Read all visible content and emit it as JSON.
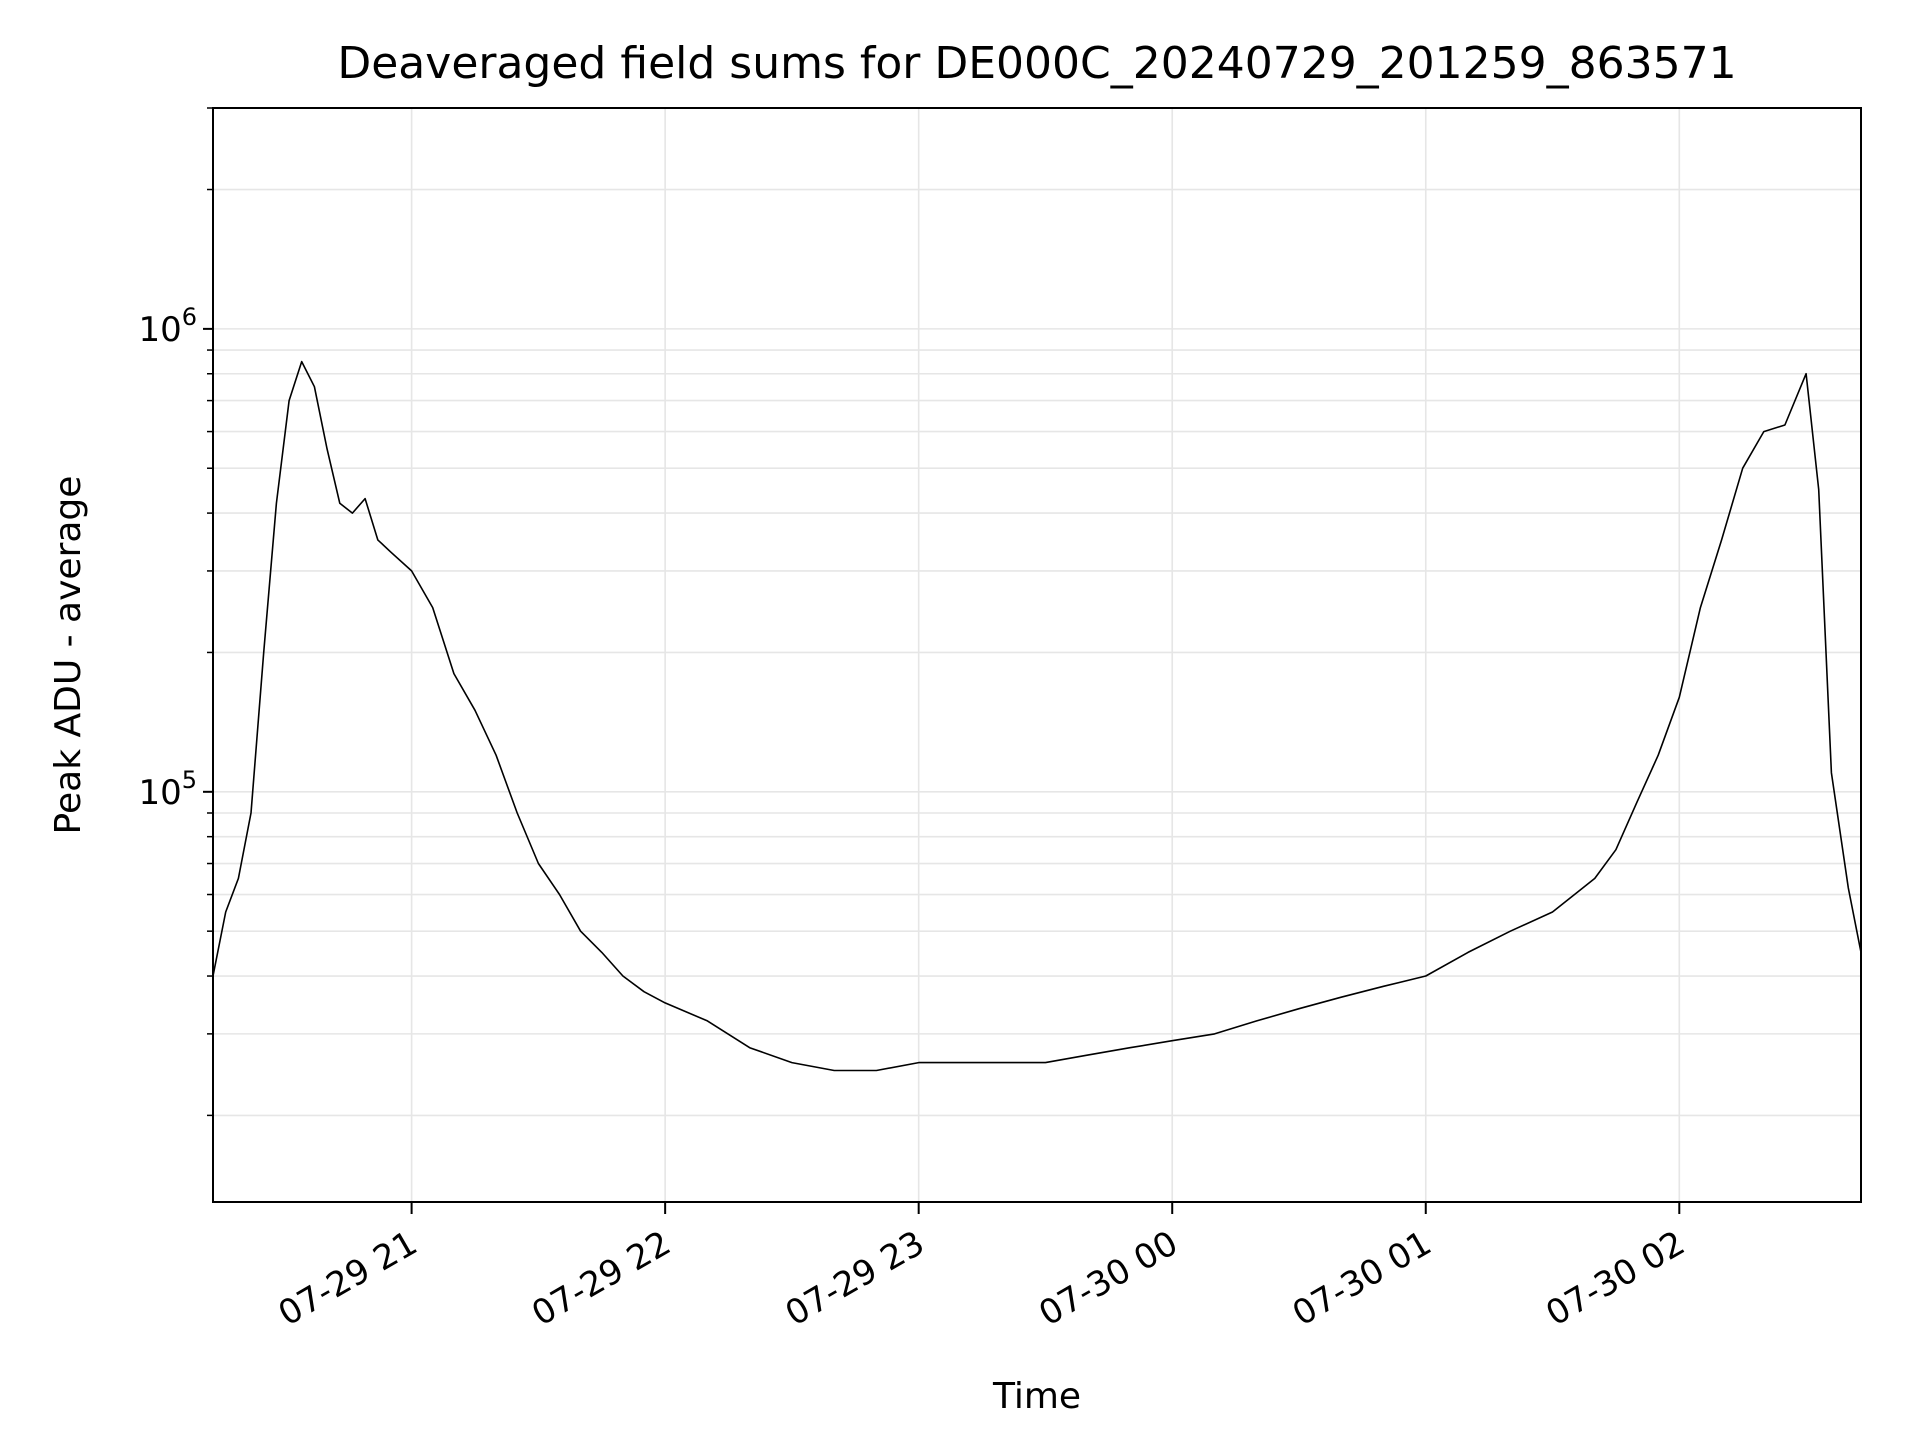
{
  "chart_data": {
    "type": "line",
    "title": "Deaveraged field sums for DE000C_20240729_201259_863571",
    "xlabel": "Time",
    "ylabel": "Peak ADU - average",
    "yscale": "log",
    "xlim": [
      "2024-07-29 20:13",
      "2024-07-30 02:43"
    ],
    "ylim": [
      13000,
      3000000
    ],
    "grid": true,
    "line_color": "#000000",
    "grid_color": "#e6e6e6",
    "xticks": [
      "2024-07-29 21:00",
      "2024-07-29 22:00",
      "2024-07-29 23:00",
      "2024-07-30 00:00",
      "2024-07-30 01:00",
      "2024-07-30 02:00"
    ],
    "xtick_labels": [
      "07-29 21",
      "07-29 22",
      "07-29 23",
      "07-30 00",
      "07-30 01",
      "07-30 02"
    ],
    "ytick_labels": [
      {
        "value": 100000,
        "base": "10",
        "exp": "5"
      },
      {
        "value": 1000000,
        "base": "10",
        "exp": "6"
      }
    ],
    "series": [
      {
        "x": [
          "2024-07-29 20:13",
          "2024-07-29 20:16",
          "2024-07-29 20:19",
          "2024-07-29 20:22",
          "2024-07-29 20:25",
          "2024-07-29 20:28",
          "2024-07-29 20:31",
          "2024-07-29 20:34",
          "2024-07-29 20:37",
          "2024-07-29 20:40",
          "2024-07-29 20:43",
          "2024-07-29 20:46",
          "2024-07-29 20:49",
          "2024-07-29 20:52",
          "2024-07-29 20:55",
          "2024-07-29 21:00",
          "2024-07-29 21:05",
          "2024-07-29 21:10",
          "2024-07-29 21:15",
          "2024-07-29 21:20",
          "2024-07-29 21:25",
          "2024-07-29 21:30",
          "2024-07-29 21:35",
          "2024-07-29 21:40",
          "2024-07-29 21:45",
          "2024-07-29 21:50",
          "2024-07-29 21:55",
          "2024-07-29 22:00",
          "2024-07-29 22:10",
          "2024-07-29 22:20",
          "2024-07-29 22:30",
          "2024-07-29 22:40",
          "2024-07-29 22:50",
          "2024-07-29 23:00",
          "2024-07-29 23:10",
          "2024-07-29 23:20",
          "2024-07-29 23:30",
          "2024-07-29 23:40",
          "2024-07-29 23:50",
          "2024-07-30 00:00",
          "2024-07-30 00:10",
          "2024-07-30 00:20",
          "2024-07-30 00:30",
          "2024-07-30 00:40",
          "2024-07-30 00:50",
          "2024-07-30 01:00",
          "2024-07-30 01:10",
          "2024-07-30 01:20",
          "2024-07-30 01:30",
          "2024-07-30 01:40",
          "2024-07-30 01:45",
          "2024-07-30 01:50",
          "2024-07-30 01:55",
          "2024-07-30 02:00",
          "2024-07-30 02:05",
          "2024-07-30 02:10",
          "2024-07-30 02:15",
          "2024-07-30 02:20",
          "2024-07-30 02:25",
          "2024-07-30 02:30",
          "2024-07-30 02:33",
          "2024-07-30 02:36",
          "2024-07-30 02:40",
          "2024-07-30 02:43"
        ],
        "y": [
          40000,
          55000,
          65000,
          90000,
          200000,
          420000,
          700000,
          850000,
          750000,
          550000,
          420000,
          400000,
          430000,
          350000,
          330000,
          300000,
          250000,
          180000,
          150000,
          120000,
          90000,
          70000,
          60000,
          50000,
          45000,
          40000,
          37000,
          35000,
          32000,
          28000,
          26000,
          25000,
          25000,
          26000,
          26000,
          26000,
          26000,
          27000,
          28000,
          29000,
          30000,
          32000,
          34000,
          36000,
          38000,
          40000,
          45000,
          50000,
          55000,
          65000,
          75000,
          95000,
          120000,
          160000,
          250000,
          350000,
          500000,
          600000,
          620000,
          800000,
          450000,
          110000,
          62000,
          45000
        ]
      }
    ]
  }
}
